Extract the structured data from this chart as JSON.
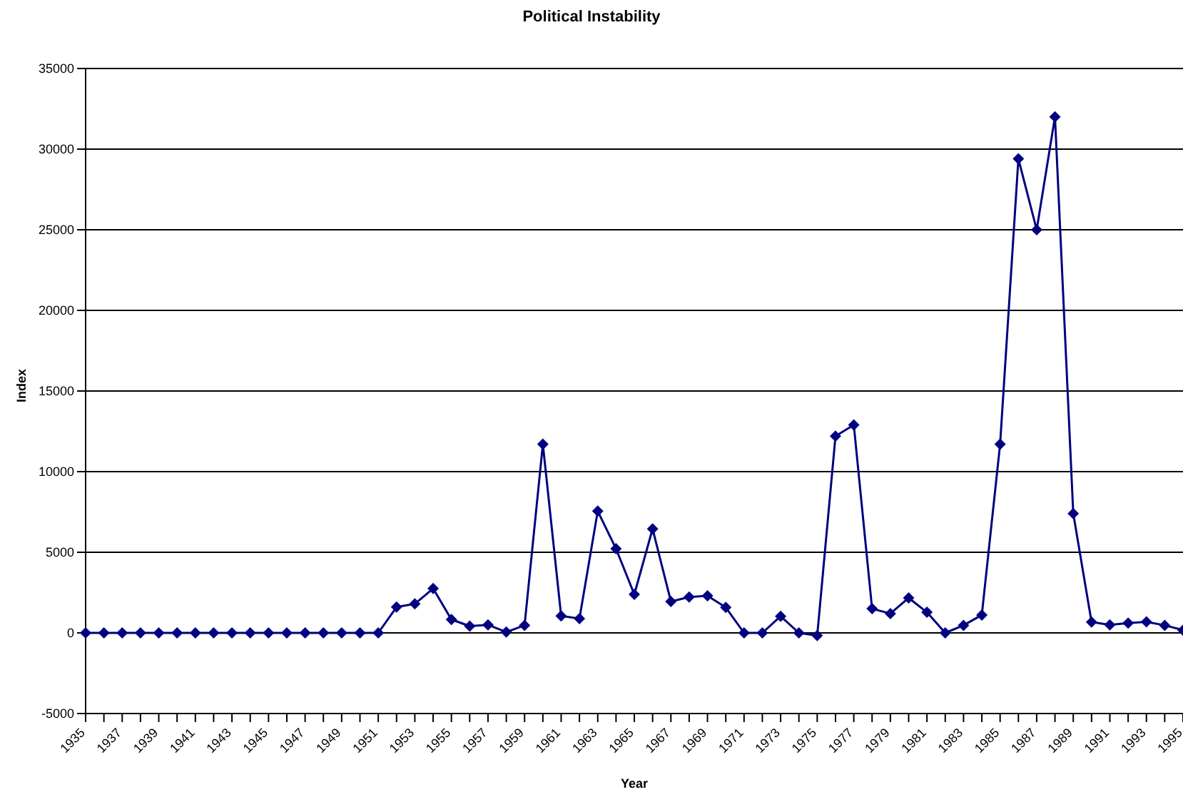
{
  "chart_data": {
    "type": "line",
    "title": "Political Instability",
    "xlabel": "Year",
    "ylabel": "Index",
    "categories": [
      "1935",
      null,
      "1937",
      null,
      "1939",
      null,
      "1941",
      null,
      "1943",
      null,
      "1945",
      null,
      "1947",
      null,
      "1949",
      null,
      "1951",
      null,
      "1953",
      null,
      "1955",
      null,
      "1957",
      null,
      "1959",
      null,
      "1961",
      null,
      "1963",
      null,
      "1965",
      null,
      "1967",
      null,
      "1969",
      null,
      "1971",
      null,
      "1973",
      null,
      "1975",
      null,
      "1977",
      null,
      "1979",
      null,
      "1981",
      null,
      "1983",
      null,
      "1985",
      null,
      "1987",
      null,
      "1989",
      null,
      "1991",
      null,
      "1993",
      null,
      "1995"
    ],
    "series": [
      {
        "color": "#000080",
        "values": [
          0,
          0,
          0,
          0,
          0,
          0,
          0,
          0,
          0,
          0,
          0,
          0,
          0,
          0,
          0,
          0,
          0,
          1600,
          1800,
          2750,
          830,
          420,
          500,
          50,
          470,
          11700,
          1050,
          890,
          7550,
          5220,
          2390,
          6450,
          1950,
          2220,
          2300,
          1580,
          0,
          0,
          1030,
          0,
          -170,
          12200,
          12900,
          1500,
          1200,
          2170,
          1280,
          0,
          470,
          1110,
          11700,
          29400,
          25000,
          32000,
          7400,
          670,
          500,
          610,
          690,
          470,
          170
        ]
      }
    ],
    "ylim": [
      -5000,
      35000
    ],
    "yticks": [
      -5000,
      0,
      5000,
      10000,
      15000,
      20000,
      25000,
      30000,
      35000
    ],
    "grid": "y",
    "legend": false,
    "marker": "diamond",
    "line_style": "solid"
  }
}
